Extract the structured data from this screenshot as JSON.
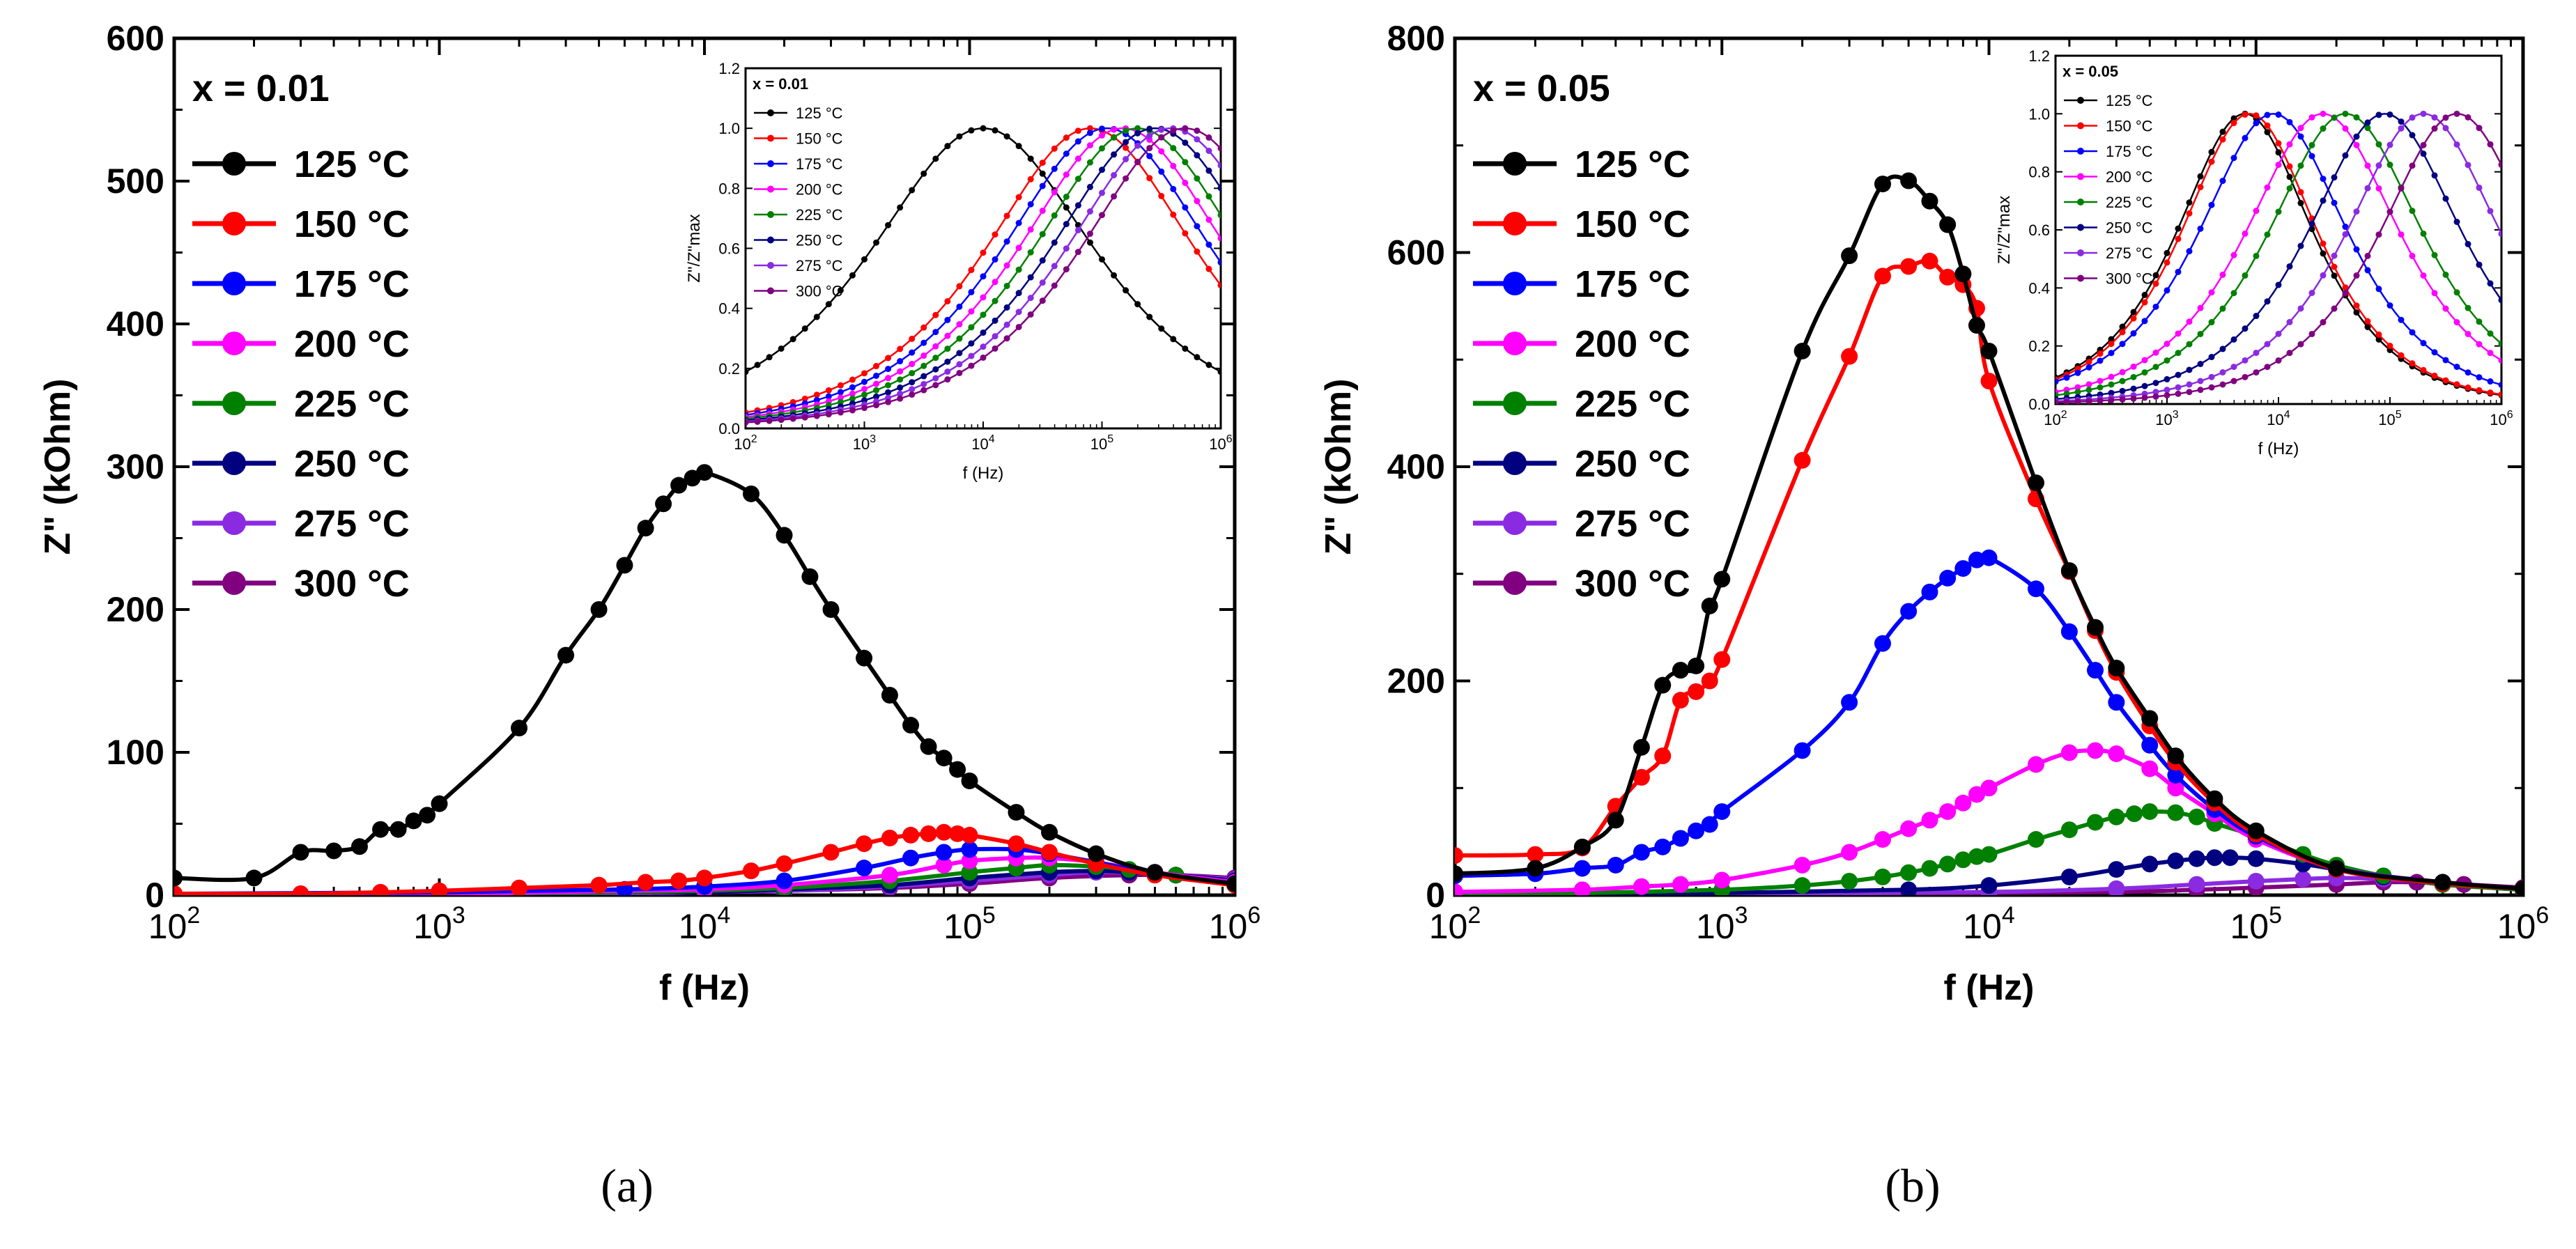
{
  "figure": {
    "captions": [
      "(a)",
      "(b)"
    ]
  },
  "chart_data": [
    {
      "id": "a",
      "type": "line",
      "title": "",
      "xlabel": "f (Hz)",
      "ylabel": "Z\" (kOhm)",
      "xscale": "log",
      "xlim": [
        100,
        1000000
      ],
      "ylim": [
        0,
        600
      ],
      "yticks": [
        0,
        100,
        200,
        300,
        400,
        500,
        600
      ],
      "xtick_exponents": [
        2,
        3,
        4,
        5,
        6
      ],
      "tick_base": "10",
      "annotation": "x = 0.01",
      "legend_position": "top-left",
      "series": [
        {
          "name": "125 °C",
          "color": "#000000",
          "x": [
            100,
            200,
            300,
            400,
            500,
            600,
            700,
            800,
            900,
            1000,
            2000,
            3000,
            4000,
            5000,
            6000,
            7000,
            8000,
            9000,
            10000,
            15000,
            20000,
            25000,
            30000,
            40000,
            50000,
            60000,
            70000,
            80000,
            90000,
            100000,
            150000,
            200000,
            300000,
            500000,
            1000000
          ],
          "values": [
            12,
            12,
            30,
            31,
            34,
            46,
            46,
            52,
            56,
            64,
            117,
            168,
            200,
            231,
            257,
            274,
            287,
            292,
            296,
            281,
            252,
            223,
            200,
            166,
            140,
            119,
            104,
            96,
            88,
            80,
            58,
            44,
            29,
            16,
            8
          ]
        },
        {
          "name": "150 °C",
          "color": "#ff0000",
          "x": [
            100,
            300,
            600,
            1000,
            2000,
            4000,
            6000,
            8000,
            10000,
            15000,
            20000,
            30000,
            40000,
            50000,
            60000,
            70000,
            80000,
            90000,
            100000,
            150000,
            200000,
            300000,
            500000,
            1000000
          ],
          "values": [
            1,
            1,
            2,
            3,
            5,
            7,
            9,
            10,
            12,
            17,
            22,
            30,
            36,
            40,
            42,
            43,
            44,
            43,
            42,
            36,
            30,
            22,
            14,
            7
          ]
        },
        {
          "name": "175 °C",
          "color": "#0000ff",
          "x": [
            100,
            1000,
            5000,
            10000,
            20000,
            40000,
            60000,
            80000,
            100000,
            150000,
            200000,
            300000,
            500000,
            1000000
          ],
          "values": [
            1,
            2,
            4,
            6,
            10,
            19,
            26,
            30,
            32,
            32,
            29,
            23,
            15,
            8
          ]
        },
        {
          "name": "200 °C",
          "color": "#ff00ff",
          "x": [
            100,
            1000,
            5000,
            10000,
            20000,
            50000,
            80000,
            100000,
            150000,
            200000,
            300000,
            500000,
            1000000
          ],
          "values": [
            1,
            1,
            3,
            4,
            7,
            14,
            21,
            24,
            26,
            26,
            23,
            16,
            9
          ]
        },
        {
          "name": "225 °C",
          "color": "#008000",
          "x": [
            100,
            1000,
            5000,
            10000,
            20000,
            50000,
            100000,
            150000,
            200000,
            300000,
            400000,
            600000,
            1000000
          ],
          "values": [
            1,
            1,
            2,
            3,
            5,
            10,
            16,
            19,
            21,
            20,
            18,
            14,
            9
          ]
        },
        {
          "name": "250 °C",
          "color": "#000080",
          "x": [
            100,
            1000,
            5000,
            10000,
            20000,
            50000,
            100000,
            200000,
            300000,
            400000,
            600000,
            1000000
          ],
          "values": [
            1,
            1,
            2,
            2,
            4,
            7,
            12,
            16,
            17,
            16,
            14,
            10
          ]
        },
        {
          "name": "275 °C",
          "color": "#8a2be2",
          "x": [
            100,
            1000,
            5000,
            10000,
            20000,
            50000,
            100000,
            200000,
            300000,
            500000,
            1000000
          ],
          "values": [
            0,
            1,
            1,
            2,
            3,
            6,
            10,
            14,
            16,
            15,
            11
          ]
        },
        {
          "name": "300 °C",
          "color": "#800080",
          "x": [
            100,
            1000,
            5000,
            10000,
            20000,
            50000,
            100000,
            200000,
            400000,
            600000,
            1000000
          ],
          "values": [
            0,
            1,
            1,
            2,
            3,
            5,
            8,
            12,
            14,
            14,
            12
          ]
        }
      ],
      "inset": {
        "xlabel": "f (Hz)",
        "ylabel": "Z\"/Z\"max",
        "xscale": "log",
        "xlim": [
          100,
          1000000
        ],
        "ylim": [
          0,
          1.2
        ],
        "yticks": [
          0.0,
          0.2,
          0.4,
          0.6,
          0.8,
          1.0,
          1.2
        ],
        "xtick_exponents": [
          2,
          3,
          4,
          5,
          6
        ],
        "annotation": "x = 0.01",
        "peaks": [
          10000,
          80000,
          110000,
          150000,
          200000,
          280000,
          380000,
          500000
        ],
        "widths": [
          0.85,
          0.8,
          0.8,
          0.8,
          0.8,
          0.8,
          0.8,
          0.8
        ]
      }
    },
    {
      "id": "b",
      "type": "line",
      "title": "",
      "xlabel": "f (Hz)",
      "ylabel": "Z\" (kOhm)",
      "xscale": "log",
      "xlim": [
        100,
        1000000
      ],
      "ylim": [
        0,
        800
      ],
      "yticks": [
        0,
        200,
        400,
        600,
        800
      ],
      "xtick_exponents": [
        2,
        3,
        4,
        5,
        6
      ],
      "tick_base": "10",
      "annotation": "x = 0.05",
      "legend_position": "top-left",
      "series": [
        {
          "name": "125 °C",
          "color": "#000000",
          "x": [
            100,
            200,
            300,
            400,
            500,
            600,
            700,
            800,
            900,
            1000,
            2000,
            3000,
            4000,
            5000,
            6000,
            7000,
            8000,
            9000,
            10000,
            15000,
            20000,
            25000,
            30000,
            40000,
            50000,
            70000,
            100000,
            200000,
            500000,
            1000000
          ],
          "values": [
            20,
            25,
            45,
            70,
            138,
            196,
            210,
            214,
            270,
            295,
            508,
            597,
            664,
            667,
            648,
            626,
            580,
            532,
            508,
            385,
            303,
            250,
            212,
            165,
            130,
            90,
            60,
            25,
            12,
            6
          ]
        },
        {
          "name": "150 °C",
          "color": "#ff0000",
          "x": [
            100,
            200,
            300,
            400,
            500,
            600,
            700,
            800,
            900,
            1000,
            2000,
            3000,
            4000,
            5000,
            6000,
            7000,
            8000,
            9000,
            10000,
            15000,
            20000,
            25000,
            30000,
            40000,
            50000,
            70000,
            100000,
            200000,
            500000,
            1000000
          ],
          "values": [
            37,
            38,
            44,
            83,
            110,
            130,
            182,
            190,
            200,
            220,
            406,
            503,
            578,
            587,
            592,
            577,
            570,
            548,
            480,
            370,
            302,
            247,
            208,
            158,
            124,
            86,
            57,
            24,
            11,
            6
          ]
        },
        {
          "name": "175 °C",
          "color": "#0000ff",
          "x": [
            100,
            200,
            300,
            400,
            500,
            600,
            700,
            800,
            900,
            1000,
            2000,
            3000,
            4000,
            5000,
            6000,
            7000,
            8000,
            9000,
            10000,
            15000,
            20000,
            25000,
            30000,
            40000,
            50000,
            70000,
            100000,
            200000,
            500000,
            1000000
          ],
          "values": [
            18,
            20,
            25,
            28,
            40,
            45,
            53,
            60,
            66,
            78,
            135,
            180,
            235,
            265,
            283,
            296,
            305,
            313,
            315,
            286,
            246,
            210,
            180,
            140,
            112,
            80,
            55,
            25,
            12,
            6
          ]
        },
        {
          "name": "200 °C",
          "color": "#ff00ff",
          "x": [
            100,
            300,
            500,
            700,
            1000,
            2000,
            3000,
            4000,
            5000,
            6000,
            7000,
            8000,
            9000,
            10000,
            15000,
            20000,
            25000,
            30000,
            40000,
            50000,
            70000,
            100000,
            200000,
            500000,
            1000000
          ],
          "values": [
            3,
            5,
            8,
            10,
            14,
            28,
            40,
            52,
            62,
            70,
            78,
            86,
            94,
            100,
            122,
            133,
            135,
            132,
            118,
            100,
            76,
            52,
            25,
            12,
            6
          ]
        },
        {
          "name": "225 °C",
          "color": "#008000",
          "x": [
            100,
            300,
            1000,
            2000,
            3000,
            4000,
            5000,
            6000,
            7000,
            8000,
            9000,
            10000,
            15000,
            20000,
            25000,
            30000,
            35000,
            40000,
            50000,
            60000,
            70000,
            100000,
            150000,
            200000,
            300000,
            500000,
            1000000
          ],
          "values": [
            1,
            2,
            5,
            9,
            13,
            17,
            21,
            25,
            29,
            33,
            36,
            38,
            52,
            61,
            68,
            73,
            76,
            78,
            77,
            73,
            67,
            55,
            38,
            28,
            18,
            10,
            5
          ]
        },
        {
          "name": "250 °C",
          "color": "#000080",
          "x": [
            100,
            1000,
            5000,
            10000,
            20000,
            30000,
            40000,
            50000,
            60000,
            70000,
            80000,
            100000,
            150000,
            200000,
            300000,
            500000,
            1000000
          ],
          "values": [
            0,
            2,
            5,
            9,
            17,
            24,
            29,
            32,
            34,
            35,
            35,
            34,
            29,
            24,
            17,
            10,
            5
          ]
        },
        {
          "name": "275 °C",
          "color": "#8a2be2",
          "x": [
            100,
            1000,
            10000,
            30000,
            60000,
            100000,
            150000,
            200000,
            300000,
            500000,
            1000000
          ],
          "values": [
            0,
            1,
            3,
            6,
            10,
            13,
            15,
            16,
            15,
            11,
            6
          ]
        },
        {
          "name": "300 °C",
          "color": "#800080",
          "x": [
            100,
            1000,
            10000,
            30000,
            60000,
            100000,
            200000,
            300000,
            400000,
            600000,
            1000000
          ],
          "values": [
            0,
            1,
            2,
            3,
            5,
            7,
            10,
            12,
            12,
            10,
            7
          ]
        }
      ],
      "inset": {
        "xlabel": "f (Hz)",
        "ylabel": "Z\"/Z\"max",
        "xscale": "log",
        "xlim": [
          100,
          1000000
        ],
        "ylim": [
          0,
          1.2
        ],
        "yticks": [
          0.0,
          0.2,
          0.4,
          0.6,
          0.8,
          1.0,
          1.2
        ],
        "xtick_exponents": [
          2,
          3,
          4,
          5,
          6
        ],
        "annotation": "x = 0.05",
        "peaks": [
          5000,
          5500,
          9000,
          25000,
          40000,
          90000,
          200000,
          400000
        ],
        "widths": [
          0.55,
          0.55,
          0.6,
          0.62,
          0.62,
          0.62,
          0.62,
          0.62
        ]
      }
    }
  ]
}
